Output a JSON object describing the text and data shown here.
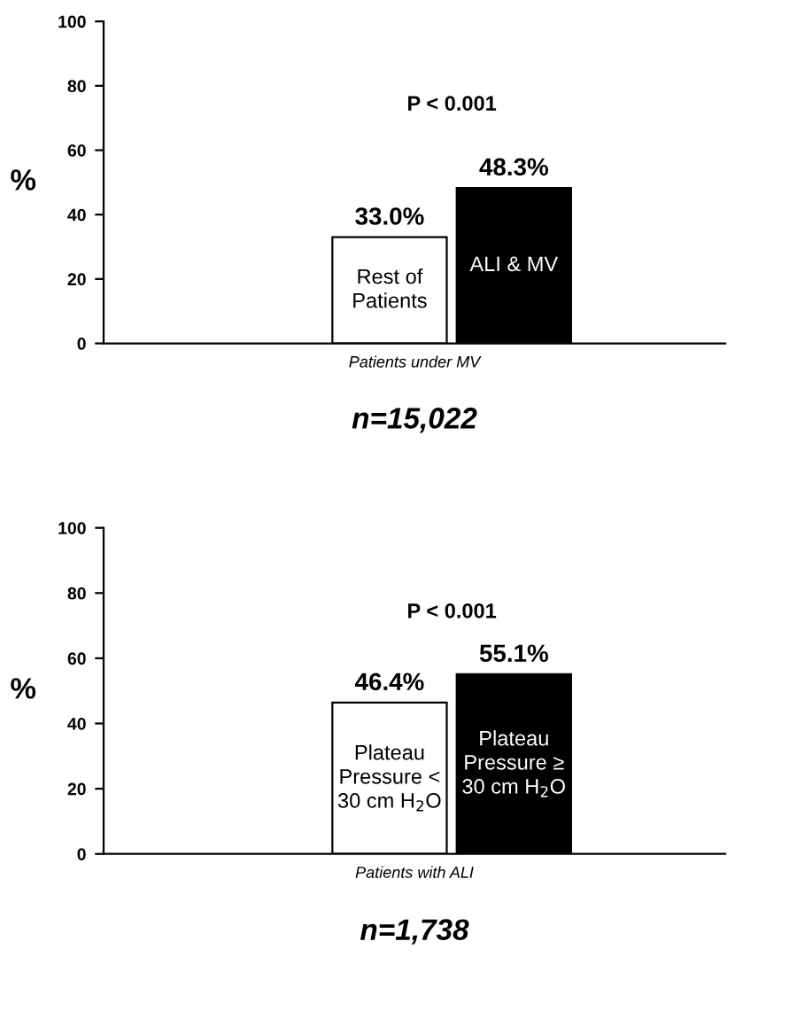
{
  "chart_data": [
    {
      "type": "bar",
      "categories": [
        "Rest of\nPatients",
        "ALI & MV"
      ],
      "values": [
        33.0,
        48.3
      ],
      "colors": [
        "#ffffff",
        "#000000"
      ],
      "value_labels": [
        "33.0%",
        "48.3%"
      ],
      "ylabel": "%",
      "xlabel": "Patients under MV",
      "ylim": [
        0,
        100
      ],
      "yticks": [
        0,
        20,
        40,
        60,
        80,
        100
      ],
      "grid": false,
      "legend": false,
      "annotations": [
        "P < 0.001",
        "n=15,022"
      ]
    },
    {
      "type": "bar",
      "categories": [
        "Plateau\nPressure <\n30 cm H$_{2}$O",
        "Plateau\nPressure ≥\n30 cm H$_{2}$O"
      ],
      "values": [
        46.4,
        55.1
      ],
      "colors": [
        "#ffffff",
        "#000000"
      ],
      "value_labels": [
        "46.4%",
        "55.1%"
      ],
      "ylabel": "%",
      "xlabel": "Patients with ALI",
      "ylim": [
        0,
        100
      ],
      "yticks": [
        0,
        20,
        40,
        60,
        80,
        100
      ],
      "grid": false,
      "legend": false,
      "annotations": [
        "P < 0.001",
        "n=1,738"
      ]
    }
  ]
}
